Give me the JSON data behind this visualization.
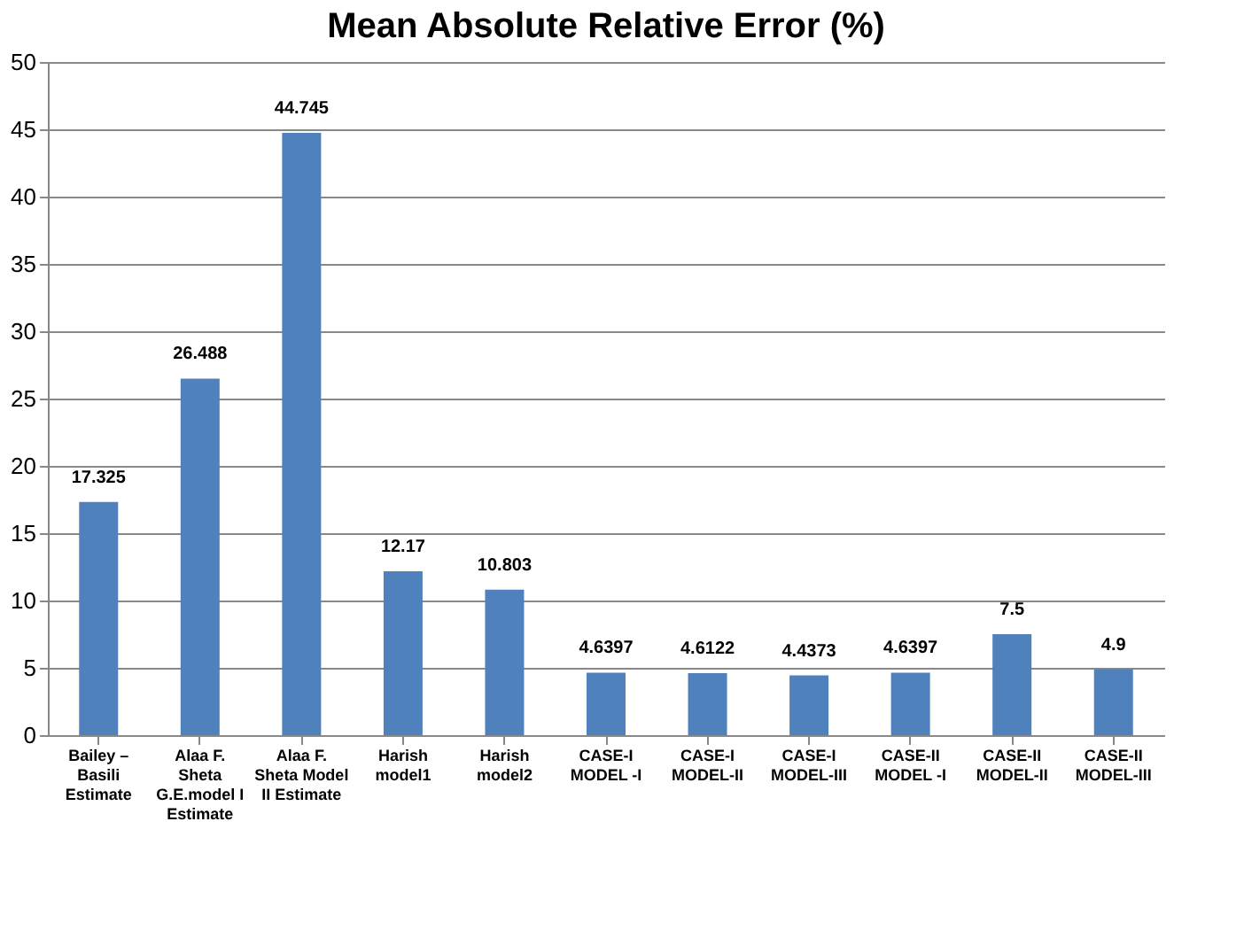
{
  "chart_data": {
    "type": "bar",
    "title": "Mean Absolute Relative Error (%)",
    "categories": [
      "Bailey – Basili Estimate",
      "Alaa F. Sheta G.E.model I Estimate",
      "Alaa F. Sheta Model II Estimate",
      "Harish model1",
      "Harish model2",
      "CASE-I MODEL -I",
      "CASE-I MODEL-II",
      "CASE-I MODEL-III",
      "CASE-II MODEL -I",
      "CASE-II MODEL-II",
      "CASE-II MODEL-III"
    ],
    "values": [
      17.325,
      26.488,
      44.745,
      12.17,
      10.803,
      4.6397,
      4.6122,
      4.4373,
      4.6397,
      7.5,
      4.9
    ],
    "color": "#4f81bd",
    "ylim": [
      0,
      50
    ],
    "yticks": [
      0,
      5,
      10,
      15,
      20,
      25,
      30,
      35,
      40,
      45,
      50
    ],
    "grid": "y",
    "data_labels": true
  }
}
